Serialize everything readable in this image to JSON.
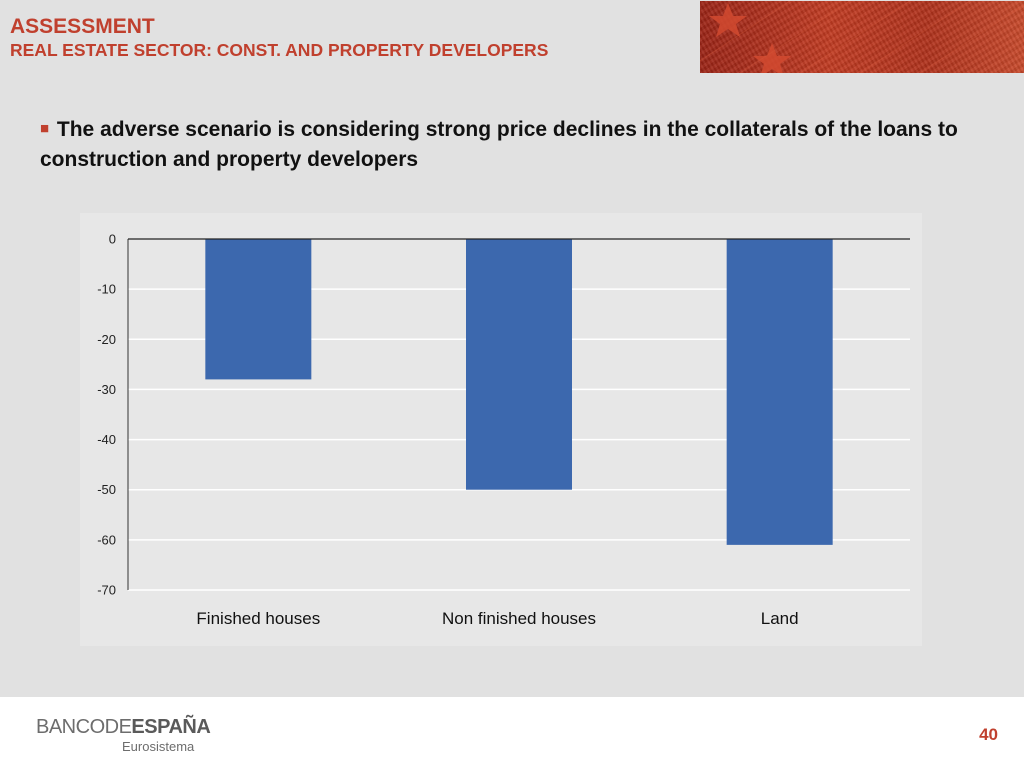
{
  "header": {
    "title": "ASSESSMENT",
    "subtitle": "REAL ESTATE SECTOR: CONST. AND PROPERTY DEVELOPERS"
  },
  "bullet": {
    "icon": "square-bullet-icon",
    "text": "The adverse scenario is considering strong price declines in the collaterals of the loans to construction and property developers"
  },
  "chart_data": {
    "type": "bar",
    "categories": [
      "Finished houses",
      "Non finished houses",
      "Land"
    ],
    "values": [
      -28,
      -50,
      -61
    ],
    "title": "",
    "xlabel": "",
    "ylabel": "",
    "ylim": [
      -70,
      0
    ],
    "yticks": [
      0,
      -10,
      -20,
      -30,
      -40,
      -50,
      -60,
      -70
    ],
    "grid": true,
    "bar_color": "#3c68ae"
  },
  "footer": {
    "logo_part1": "BANCO",
    "logo_part2": "DE",
    "logo_part3": "ESPAÑA",
    "logo_sub": "Eurosistema",
    "page_number": "40"
  },
  "colors": {
    "accent": "#c0402e",
    "background": "#e1e1e1"
  }
}
